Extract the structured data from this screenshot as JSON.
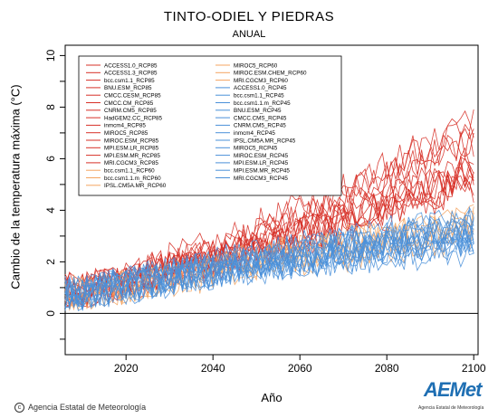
{
  "chart_data": {
    "type": "line",
    "title": "TINTO-ODIEL Y PIEDRAS",
    "subtitle": "ANUAL",
    "xlabel": "Año",
    "ylabel": "Cambio de la temperatura máxima (°C)",
    "xlim": [
      2006,
      2101
    ],
    "ylim": [
      -1.6,
      10.4
    ],
    "xticks": [
      2020,
      2040,
      2060,
      2080,
      2100
    ],
    "yticks": [
      0,
      2,
      4,
      6,
      8,
      10
    ],
    "zero_line": true,
    "legend_placement": "top-left",
    "legend_columns": [
      [
        {
          "name": "ACCESS1.0_RCP85",
          "color": "#d73027"
        },
        {
          "name": "ACCESS1.3_RCP85",
          "color": "#d73027"
        },
        {
          "name": "bcc.csm1.1_RCP85",
          "color": "#d73027"
        },
        {
          "name": "BNU.ESM_RCP85",
          "color": "#d73027"
        },
        {
          "name": "CMCC.CESM_RCP85",
          "color": "#d73027"
        },
        {
          "name": "CMCC.CM_RCP85",
          "color": "#d73027"
        },
        {
          "name": "CNRM.CM5_RCP85",
          "color": "#d73027"
        },
        {
          "name": "HadGEM2.CC_RCP85",
          "color": "#d73027"
        },
        {
          "name": "inmcm4_RCP85",
          "color": "#d73027"
        },
        {
          "name": "MIROC5_RCP85",
          "color": "#d73027"
        },
        {
          "name": "MIROC.ESM_RCP85",
          "color": "#d73027"
        },
        {
          "name": "MPI.ESM.LR_RCP85",
          "color": "#d73027"
        },
        {
          "name": "MPI.ESM.MR_RCP85",
          "color": "#d73027"
        },
        {
          "name": "MRI.CGCM3_RCP85",
          "color": "#d73027"
        },
        {
          "name": "bcc.csm1.1_RCP60",
          "color": "#f4a460"
        },
        {
          "name": "bcc.csm1.1.m_RCP60",
          "color": "#f4a460"
        },
        {
          "name": "IPSL.CM5A.MR_RCP60",
          "color": "#f4a460"
        }
      ],
      [
        {
          "name": "MIROC5_RCP60",
          "color": "#f4a460"
        },
        {
          "name": "MIROC.ESM.CHEM_RCP60",
          "color": "#f4a460"
        },
        {
          "name": "MRI.CGCM3_RCP60",
          "color": "#f4a460"
        },
        {
          "name": "ACCESS1.0_RCP45",
          "color": "#4a90d9"
        },
        {
          "name": "bcc.csm1.1_RCP45",
          "color": "#4a90d9"
        },
        {
          "name": "bcc.csm1.1.m_RCP45",
          "color": "#4a90d9"
        },
        {
          "name": "BNU.ESM_RCP45",
          "color": "#4a90d9"
        },
        {
          "name": "CMCC.CMS_RCP45",
          "color": "#4a90d9"
        },
        {
          "name": "CNRM.CM5_RCP45",
          "color": "#4a90d9"
        },
        {
          "name": "inmcm4_RCP45",
          "color": "#4a90d9"
        },
        {
          "name": "IPSL.CM5A.MR_RCP45",
          "color": "#4a90d9"
        },
        {
          "name": "MIROC5_RCP45",
          "color": "#4a90d9"
        },
        {
          "name": "MIROC.ESM_RCP45",
          "color": "#4a90d9"
        },
        {
          "name": "MPI.ESM.LR_RCP45",
          "color": "#4a90d9"
        },
        {
          "name": "MPI.ESM.MR_RCP45",
          "color": "#4a90d9"
        },
        {
          "name": "MRI.CGCM3_RCP45",
          "color": "#4a90d9"
        }
      ]
    ],
    "scenario_trends": [
      {
        "scenario": "RCP85",
        "color": "#d73027",
        "x": [
          2010,
          2020,
          2030,
          2040,
          2050,
          2060,
          2070,
          2080,
          2090,
          2100
        ],
        "y": [
          0.9,
          1.3,
          1.8,
          2.2,
          2.8,
          3.4,
          4.1,
          4.8,
          5.5,
          6.2
        ],
        "spread": 1.1
      },
      {
        "scenario": "RCP60",
        "color": "#f4a460",
        "x": [
          2010,
          2020,
          2030,
          2040,
          2050,
          2060,
          2070,
          2080,
          2090,
          2100
        ],
        "y": [
          0.8,
          1.1,
          1.4,
          1.7,
          2.0,
          2.3,
          2.6,
          2.9,
          3.2,
          3.5
        ],
        "spread": 0.9
      },
      {
        "scenario": "RCP45",
        "color": "#4a90d9",
        "x": [
          2010,
          2020,
          2030,
          2040,
          2050,
          2060,
          2070,
          2080,
          2090,
          2100
        ],
        "y": [
          0.8,
          1.1,
          1.4,
          1.7,
          2.0,
          2.2,
          2.5,
          2.7,
          2.9,
          3.0
        ],
        "spread": 0.9
      }
    ]
  },
  "footer": {
    "credit": "Agencia Estatal de Meteorología",
    "logo_text": "AEMet",
    "logo_subtext": "Agencia Estatal de Meteorología"
  }
}
